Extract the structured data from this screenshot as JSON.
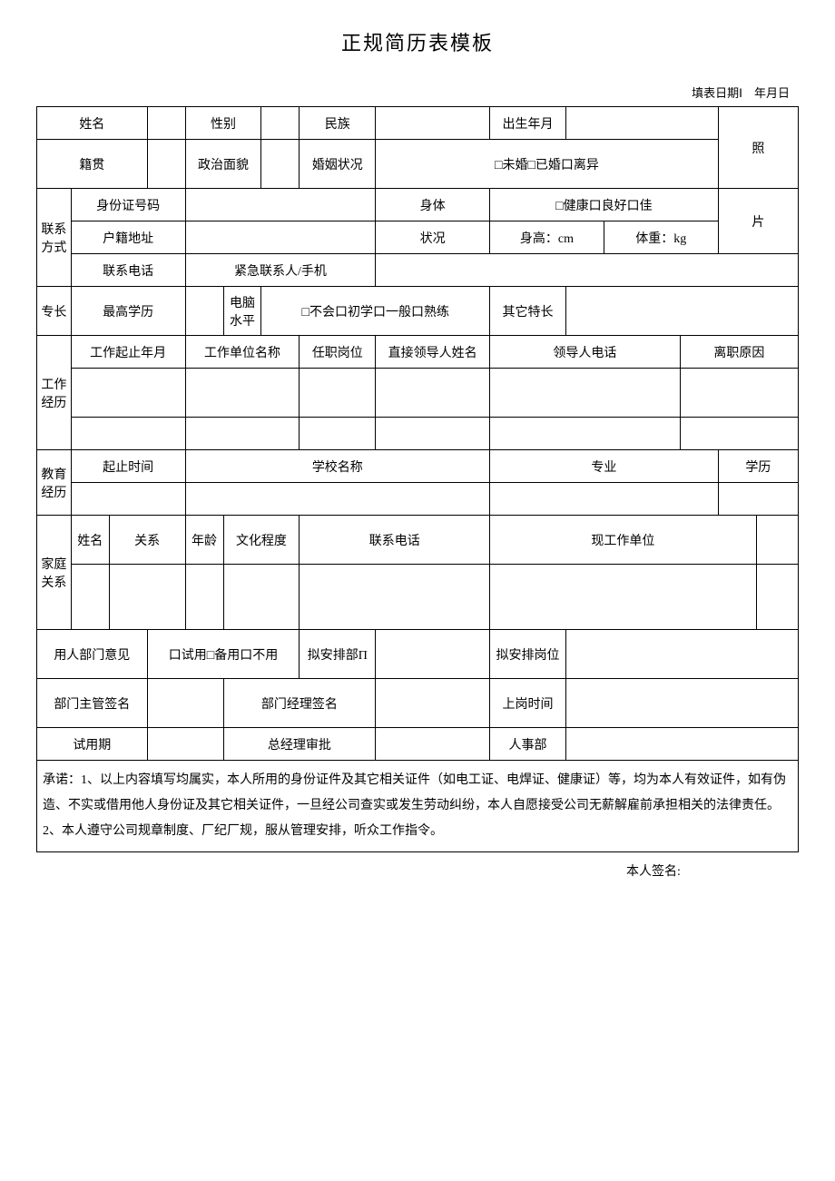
{
  "title": "正规简历表模板",
  "dateLabel": "填表日期Ⅰ　年月日",
  "labels": {
    "name": "姓名",
    "gender": "性别",
    "ethnicity": "民族",
    "birth": "出生年月",
    "nativePlace": "籍贯",
    "political": "政治面貌",
    "marital": "婚姻状况",
    "maritalOptions": "□未婚□已婚口离异",
    "photo1": "照",
    "photo2": "片",
    "contactHeader": "联系方式",
    "idNumber": "身份证号码",
    "householdAddr": "户籍地址",
    "phone": "联系电话",
    "emergencyContact": "紧急联系人/手机",
    "health": "身体",
    "healthStatus": "状况",
    "healthOptions": "□健康口良好口佳",
    "height": "身高：cm",
    "weight": "体重：kg",
    "skillsHeader": "专长",
    "education": "最高学历",
    "computerSkill": "电脑水平",
    "computerOptions": "□不会口初学口一般口熟练",
    "otherSkills": "其它特长",
    "workHeader": "工作经历",
    "workPeriod": "工作起止年月",
    "workUnit": "工作单位名称",
    "position": "任职岗位",
    "leaderName": "直接领导人姓名",
    "leaderPhone": "领导人电话",
    "leaveReason": "离职原因",
    "eduHeader": "教育经历",
    "eduPeriod": "起止时间",
    "schoolName": "学校名称",
    "major": "专业",
    "degree": "学历",
    "familyHeader": "家庭关系",
    "famName": "姓名",
    "relation": "关系",
    "age": "年龄",
    "eduLevel": "文化程度",
    "famPhone": "联系电话",
    "famWorkUnit": "现工作单位",
    "deptOpinion": "用人部门意见",
    "trialOptions": "口试用□备用口不用",
    "arrangeDept": "拟安排部Π",
    "arrangePosition": "拟安排岗位",
    "deptSupervisor": "部门主管签名",
    "deptManager": "部门经理签名",
    "startDate": "上岗时间",
    "trialPeriod": "试用期",
    "gmApproval": "总经理审批",
    "hrDept": "人事部",
    "declaration": "承诺：1、以上内容填写均属实，本人所用的身份证件及其它相关证件（如电工证、电焊证、健康证）等，均为本人有效证件，如有伪造、不实或借用他人身份证及其它相关证件，一旦经公司查实或发生劳动纠纷，本人自愿接受公司无薪解雇前承担相关的法律责任。\n2、本人遵守公司规章制度、厂纪厂规，服从管理安排，听众工作指令。"
  },
  "signature": "本人签名:"
}
